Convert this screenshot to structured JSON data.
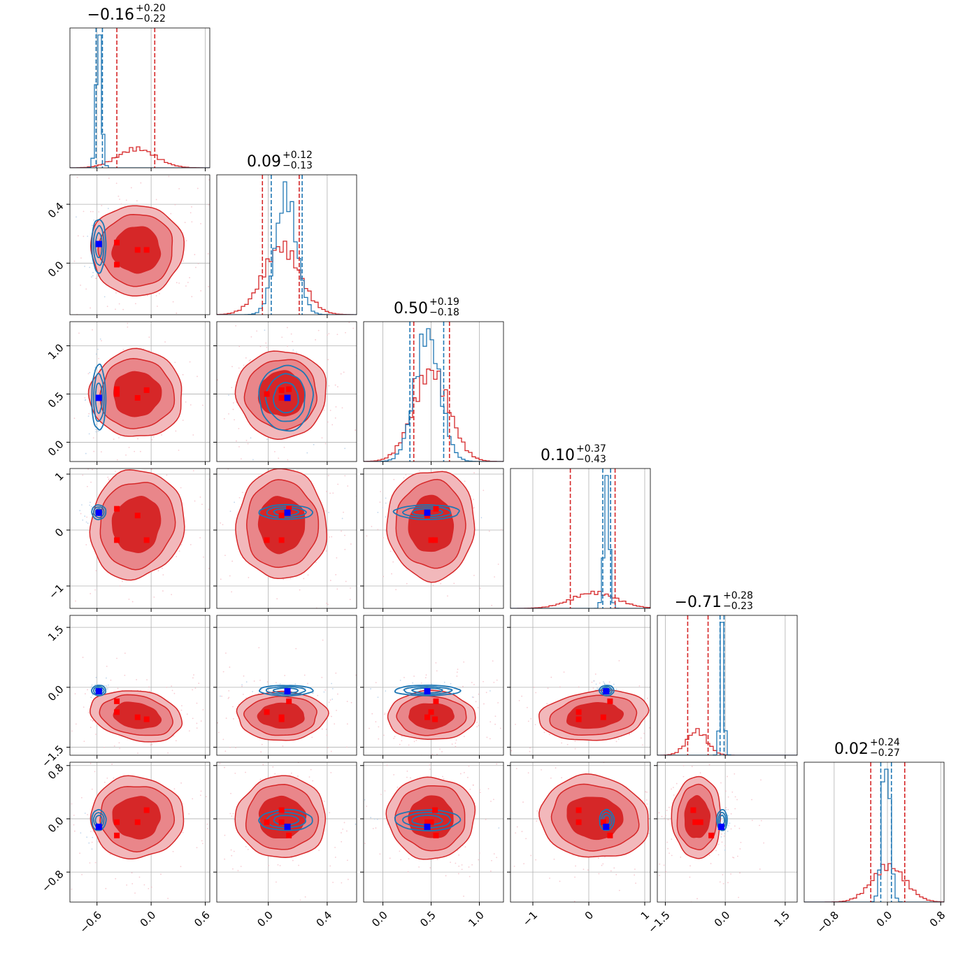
{
  "chart_data": {
    "type": "corner",
    "n_params": 6,
    "colors": {
      "red": "#d62728",
      "red_light": "#f0a0a3",
      "red_mid": "#e26064",
      "blue": "#1f77b4",
      "marker_blue": "#0000ff",
      "marker_red": "#ff0000",
      "grid": "#b0b0b0"
    },
    "ranges": [
      [
        -0.9,
        0.65
      ],
      [
        -0.35,
        0.6
      ],
      [
        -0.2,
        1.25
      ],
      [
        -1.4,
        1.1
      ],
      [
        -1.7,
        1.8
      ],
      [
        -1.25,
        0.85
      ]
    ],
    "ticks": [
      {
        "values": [
          -0.6,
          0.0,
          0.6
        ],
        "labels": [
          "−0.6",
          "0.0",
          "0.6"
        ]
      },
      {
        "values": [
          0.0,
          0.4
        ],
        "labels": [
          "0.0",
          "0.4"
        ]
      },
      {
        "values": [
          0.0,
          0.5,
          1.0
        ],
        "labels": [
          "0.0",
          "0.5",
          "1.0"
        ]
      },
      {
        "values": [
          -1,
          0,
          1
        ],
        "labels": [
          "−1",
          "0",
          "1"
        ]
      },
      {
        "values": [
          -1.5,
          0.0,
          1.5
        ],
        "labels": [
          "−1.5",
          "0.0",
          "1.5"
        ]
      },
      {
        "values": [
          -0.8,
          0.0,
          0.8
        ],
        "labels": [
          "−0.8",
          "0.0",
          "0.8"
        ]
      }
    ],
    "titles": [
      {
        "main": "−0.16",
        "plus": "+0.20",
        "minus": "−0.22"
      },
      {
        "main": "0.09",
        "plus": "+0.12",
        "minus": "−0.13"
      },
      {
        "main": "0.50",
        "plus": "+0.19",
        "minus": "−0.18"
      },
      {
        "main": "0.10",
        "plus": "+0.37",
        "minus": "−0.43"
      },
      {
        "main": "−0.71",
        "plus": "+0.28",
        "minus": "−0.23"
      },
      {
        "main": "0.02",
        "plus": "+0.24",
        "minus": "−0.27"
      }
    ],
    "red_posterior": {
      "mean": [
        -0.16,
        0.09,
        0.5,
        0.1,
        -0.71,
        0.02
      ],
      "sd": [
        0.21,
        0.125,
        0.185,
        0.4,
        0.25,
        0.25
      ],
      "quantiles": [
        [
          -0.38,
          0.04
        ],
        [
          -0.04,
          0.21
        ],
        [
          0.32,
          0.69
        ],
        [
          -0.33,
          0.47
        ],
        [
          -0.94,
          -0.43
        ],
        [
          -0.25,
          0.26
        ]
      ]
    },
    "blue_posterior": {
      "mean": [
        -0.58,
        0.12,
        0.46,
        0.32,
        -0.08,
        -0.02
      ],
      "sd": [
        0.03,
        0.07,
        0.13,
        0.05,
        0.05,
        0.06
      ],
      "quantiles": [
        [
          -0.61,
          -0.54
        ],
        [
          0.02,
          0.23
        ],
        [
          0.28,
          0.63
        ],
        [
          0.25,
          0.39
        ],
        [
          -0.13,
          -0.03
        ],
        [
          -0.1,
          0.06
        ]
      ]
    },
    "blue_marker": [
      -0.58,
      0.13,
      0.46,
      0.31,
      -0.1,
      -0.12
    ],
    "red_markers": [
      [
        -0.38,
        0.14,
        0.55,
        0.38,
        -0.35,
        -0.25
      ],
      [
        -0.15,
        0.09,
        0.46,
        0.26,
        -0.75,
        -0.05
      ],
      [
        -0.38,
        -0.01,
        0.5,
        -0.18,
        -0.62,
        -0.05
      ],
      [
        -0.05,
        0.09,
        0.54,
        -0.18,
        -0.8,
        0.13
      ]
    ]
  }
}
